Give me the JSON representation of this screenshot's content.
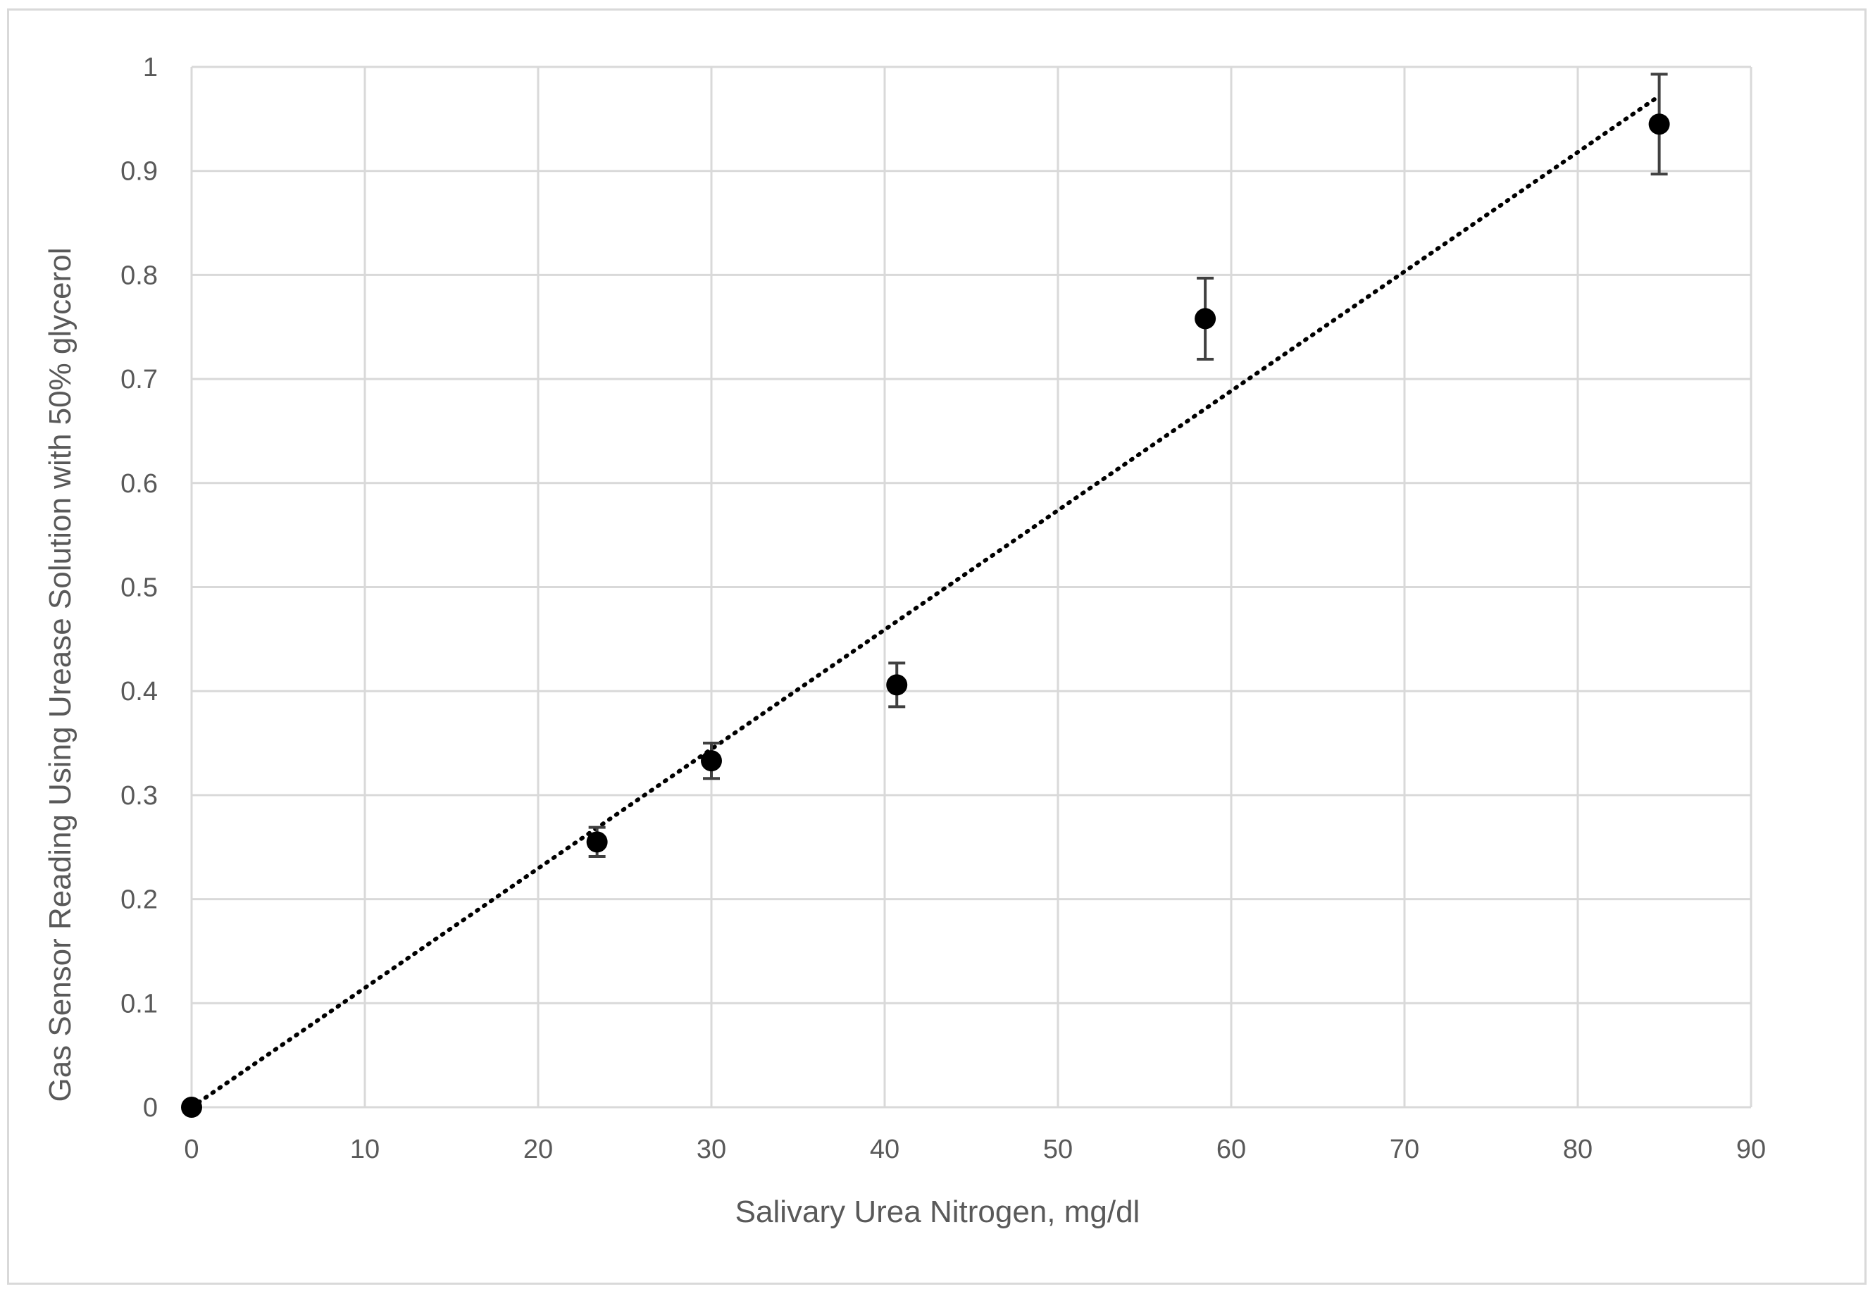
{
  "chart_data": {
    "type": "scatter",
    "title": "",
    "xlabel": "Salivary Urea Nitrogen, mg/dl",
    "ylabel": "Gas Sensor Reading Using Urease Solution with 50% glycerol",
    "xlim": [
      0,
      90
    ],
    "ylim": [
      0,
      1
    ],
    "x_ticks": [
      "0",
      "10",
      "20",
      "30",
      "40",
      "50",
      "60",
      "70",
      "80",
      "90"
    ],
    "y_ticks": [
      "0",
      "0.1",
      "0.2",
      "0.3",
      "0.4",
      "0.5",
      "0.6",
      "0.7",
      "0.8",
      "0.9",
      "1"
    ],
    "grid": true,
    "legend": "none",
    "series": [
      {
        "points": [
          {
            "x": 0,
            "y": 0,
            "err": 0.0
          },
          {
            "x": 23.4,
            "y": 0.255,
            "err": 0.014
          },
          {
            "x": 30.0,
            "y": 0.333,
            "err": 0.017
          },
          {
            "x": 40.7,
            "y": 0.406,
            "err": 0.021
          },
          {
            "x": 58.5,
            "y": 0.758,
            "err": 0.039
          },
          {
            "x": 84.7,
            "y": 0.945,
            "err": 0.048
          }
        ],
        "marker_color": "#000000"
      }
    ],
    "trendline": {
      "type": "linear",
      "style": "dotted",
      "from": [
        0,
        0
      ],
      "to": [
        84.7,
        0.972
      ]
    }
  }
}
